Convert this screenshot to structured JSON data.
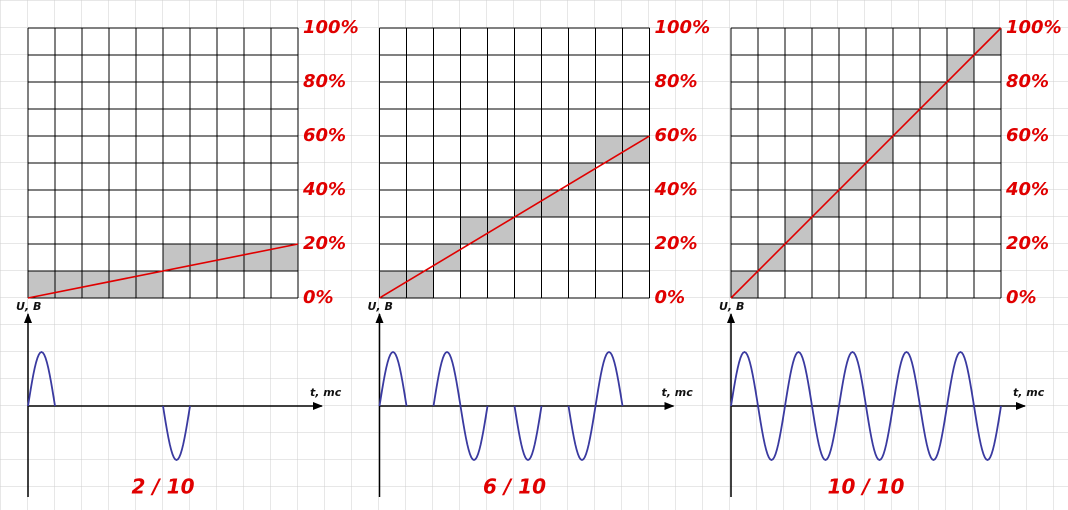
{
  "panels": [
    {
      "caption": "2 / 10",
      "line_end": 20,
      "levels": [
        0,
        0,
        0,
        0,
        0,
        1,
        1,
        1,
        1,
        1
      ],
      "pulses": [
        1,
        0,
        0,
        0,
        0,
        1,
        0,
        0,
        0,
        0
      ]
    },
    {
      "caption": "6 / 10",
      "line_end": 60,
      "levels": [
        0,
        0,
        1,
        2,
        2,
        3,
        3,
        4,
        5,
        5
      ],
      "pulses": [
        1,
        0,
        1,
        1,
        0,
        1,
        0,
        1,
        1,
        0
      ]
    },
    {
      "caption": "10 / 10",
      "line_end": 100,
      "levels": [
        0,
        1,
        2,
        3,
        4,
        5,
        6,
        7,
        8,
        9
      ],
      "pulses": [
        1,
        1,
        1,
        1,
        1,
        1,
        1,
        1,
        1,
        1
      ]
    }
  ],
  "scale_ticks": [
    {
      "value": 100,
      "label": "100%"
    },
    {
      "value": 80,
      "label": "80%"
    },
    {
      "value": 60,
      "label": "60%"
    },
    {
      "value": 40,
      "label": "40%"
    },
    {
      "value": 20,
      "label": "20%"
    },
    {
      "value": 0,
      "label": "0%"
    }
  ],
  "y_axis_label": "U, B",
  "x_axis_label": "t, mc"
}
